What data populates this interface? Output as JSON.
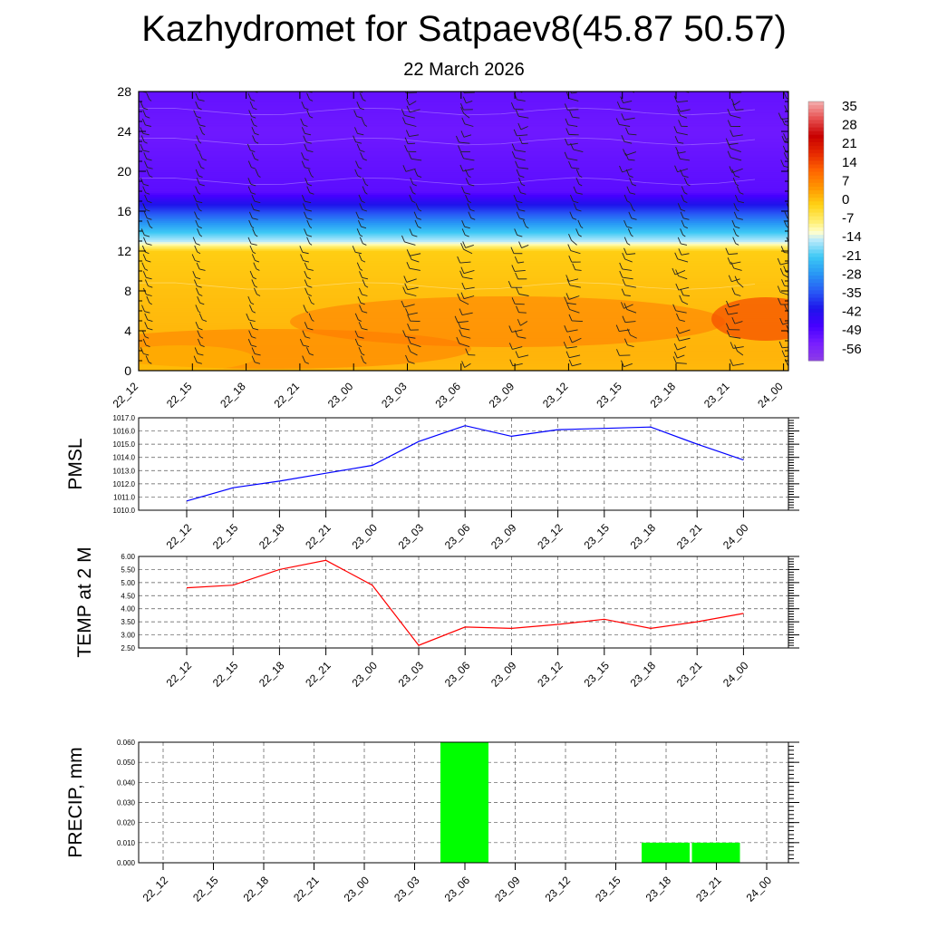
{
  "title": "Kazhydromet for Satpaev8(45.87 50.57)",
  "subtitle": "22 March 2026",
  "time_labels": [
    "22_12",
    "22_15",
    "22_18",
    "22_21",
    "23_00",
    "23_03",
    "23_06",
    "23_09",
    "23_12",
    "23_15",
    "23_18",
    "23_21",
    "24_00"
  ],
  "chart_data": [
    {
      "type": "heatmap",
      "y_ticks": [
        0,
        4,
        8,
        12,
        16,
        20,
        24,
        28
      ],
      "ylim": [
        0,
        28
      ],
      "colorbar": {
        "labels": [
          "35",
          "28",
          "21",
          "14",
          "7",
          "0",
          "-7",
          "-14",
          "-21",
          "-28",
          "-35",
          "-42",
          "-49",
          "-56"
        ],
        "range": [
          -63,
          42
        ]
      },
      "wind_barbs": true
    },
    {
      "type": "line",
      "ylabel": "PMSL",
      "color": "#0000ff",
      "ylim": [
        1010.0,
        1017.0
      ],
      "y_ticks": [
        "1010.0",
        "1011.0",
        "1012.0",
        "1013.0",
        "1014.0",
        "1015.0",
        "1016.0",
        "1017.0"
      ],
      "values": [
        1010.7,
        1011.7,
        1012.2,
        1012.8,
        1013.4,
        1015.2,
        1016.4,
        1015.6,
        1016.1,
        1016.2,
        1016.3,
        1015.0,
        1013.8
      ]
    },
    {
      "type": "line",
      "ylabel": "TEMP at 2 M",
      "color": "#ff0000",
      "ylim": [
        2.5,
        6.0
      ],
      "y_ticks": [
        "2.50",
        "3.00",
        "3.50",
        "4.00",
        "4.50",
        "5.00",
        "5.50",
        "6.00"
      ],
      "values": [
        4.8,
        4.9,
        5.5,
        5.85,
        4.9,
        2.6,
        3.3,
        3.25,
        3.4,
        3.6,
        3.25,
        3.5,
        3.82
      ]
    },
    {
      "type": "bar",
      "ylabel": "PRECIP, mm",
      "color": "#00ff00",
      "ylim": [
        0.0,
        0.06
      ],
      "y_ticks": [
        "0.000",
        "0.010",
        "0.020",
        "0.030",
        "0.040",
        "0.050",
        "0.060"
      ],
      "values": [
        0,
        0,
        0,
        0,
        0,
        0,
        0.06,
        0,
        0,
        0,
        0.01,
        0.01,
        0
      ]
    }
  ]
}
